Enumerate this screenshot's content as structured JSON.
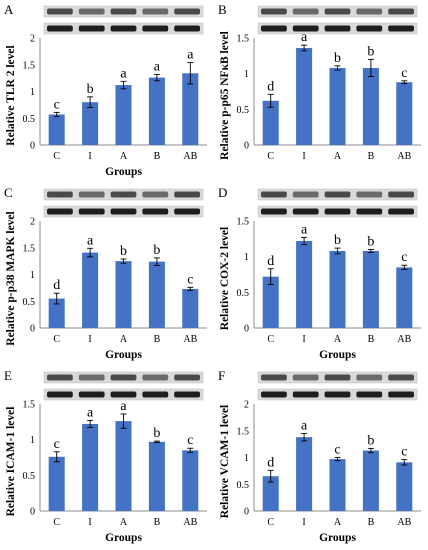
{
  "chart_data": [
    {
      "panel": "A",
      "type": "bar",
      "categories": [
        "C",
        "I",
        "A",
        "B",
        "AB"
      ],
      "values": [
        0.57,
        0.8,
        1.12,
        1.26,
        1.34
      ],
      "errors": [
        0.04,
        0.1,
        0.07,
        0.06,
        0.2
      ],
      "significance": [
        "c",
        "b",
        "a",
        "a",
        "a"
      ],
      "ylabel": "Relative TLR 2 level",
      "xlabel": "Groups",
      "ylim": [
        0,
        2
      ],
      "yticks": [
        "0",
        "0.5",
        "1",
        "1.5",
        "2"
      ],
      "bar_color": "#4472c4"
    },
    {
      "panel": "B",
      "type": "bar",
      "categories": [
        "C",
        "I",
        "A",
        "B",
        "AB"
      ],
      "values": [
        0.62,
        1.36,
        1.08,
        1.08,
        0.88
      ],
      "errors": [
        0.09,
        0.04,
        0.03,
        0.12,
        0.02
      ],
      "significance": [
        "d",
        "a",
        "b",
        "b",
        "c"
      ],
      "ylabel": "Relative p-p65 NFκB level",
      "xlabel": "",
      "ylim": [
        0,
        1.5
      ],
      "yticks": [
        "0",
        "0.5",
        "1",
        "1.5"
      ],
      "bar_color": "#4472c4"
    },
    {
      "panel": "C",
      "type": "bar",
      "categories": [
        "C",
        "I",
        "A",
        "B",
        "AB"
      ],
      "values": [
        0.55,
        1.41,
        1.25,
        1.24,
        0.73
      ],
      "errors": [
        0.1,
        0.08,
        0.04,
        0.07,
        0.03
      ],
      "significance": [
        "d",
        "a",
        "b",
        "b",
        "c"
      ],
      "ylabel": "Relative p-p38 MAPK level",
      "xlabel": "Groups",
      "ylim": [
        0,
        2
      ],
      "yticks": [
        "0",
        "0.5",
        "1",
        "1.5",
        "2"
      ],
      "bar_color": "#4472c4"
    },
    {
      "panel": "D",
      "type": "bar",
      "categories": [
        "C",
        "I",
        "A",
        "B",
        "AB"
      ],
      "values": [
        0.72,
        1.22,
        1.08,
        1.08,
        0.85
      ],
      "errors": [
        0.11,
        0.05,
        0.04,
        0.02,
        0.03
      ],
      "significance": [
        "d",
        "a",
        "b",
        "b",
        "c"
      ],
      "ylabel": "Relative COX-2 level",
      "xlabel": "Groups",
      "ylim": [
        0,
        1.5
      ],
      "yticks": [
        "0",
        "0.5",
        "1",
        "1.5"
      ],
      "bar_color": "#4472c4"
    },
    {
      "panel": "E",
      "type": "bar",
      "categories": [
        "C",
        "I",
        "A",
        "B",
        "AB"
      ],
      "values": [
        0.76,
        1.22,
        1.26,
        0.97,
        0.85
      ],
      "errors": [
        0.07,
        0.05,
        0.1,
        0.01,
        0.03
      ],
      "significance": [
        "c",
        "a",
        "a",
        "b",
        "c"
      ],
      "ylabel": "Relative ICAM-1 level",
      "xlabel": "Groups",
      "ylim": [
        0,
        1.5
      ],
      "yticks": [
        "0",
        "0.5",
        "1",
        "1.5"
      ],
      "bar_color": "#4472c4"
    },
    {
      "panel": "F",
      "type": "bar",
      "categories": [
        "C",
        "I",
        "A",
        "B",
        "AB"
      ],
      "values": [
        0.65,
        1.38,
        0.97,
        1.13,
        0.91
      ],
      "errors": [
        0.11,
        0.07,
        0.03,
        0.04,
        0.05
      ],
      "significance": [
        "d",
        "a",
        "c",
        "b",
        "c"
      ],
      "ylabel": "Relative VCAM-1 level",
      "xlabel": "Groups",
      "ylim": [
        0,
        2
      ],
      "yticks": [
        "0",
        "0.5",
        "1",
        "1.5",
        "2"
      ],
      "bar_color": "#4472c4"
    }
  ]
}
